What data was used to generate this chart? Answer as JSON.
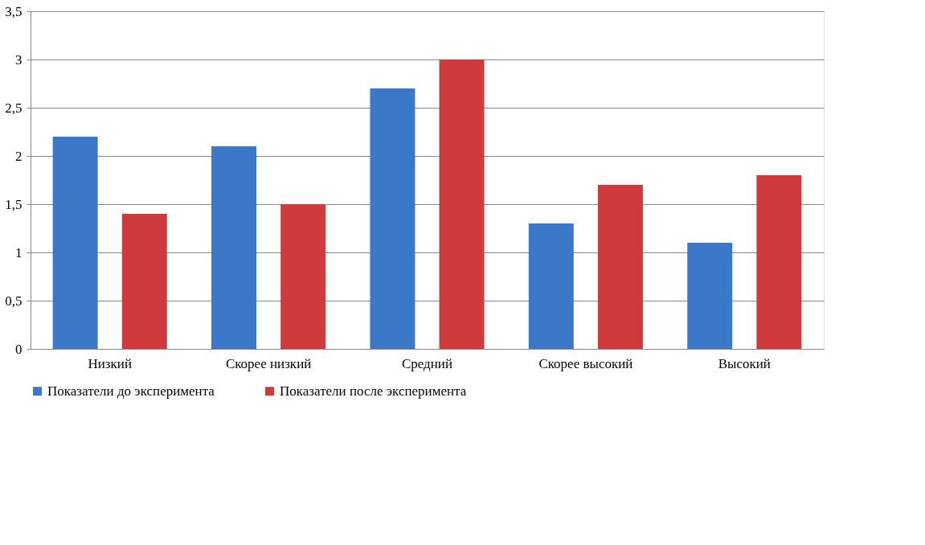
{
  "chart_data": {
    "type": "bar",
    "categories": [
      "Низкий",
      "Скорее низкий",
      "Средний",
      "Скорее высокий",
      "Высокий"
    ],
    "series": [
      {
        "name": "Показатели до эксперимента",
        "color": "#3b78c8",
        "values": [
          2.2,
          2.1,
          2.7,
          1.3,
          1.1
        ]
      },
      {
        "name": "Показатели после эксперимента",
        "color": "#cf3a3c",
        "values": [
          1.4,
          1.5,
          3.0,
          1.7,
          1.8
        ]
      }
    ],
    "ylim": [
      0,
      3.5
    ],
    "yticks": [
      0,
      {
        "value": 0.5,
        "label": "0,5"
      },
      1,
      {
        "value": 1.5,
        "label": "1,5"
      },
      2,
      {
        "value": 2.5,
        "label": "2,5"
      },
      3,
      {
        "value": 3.5,
        "label": "3,5"
      }
    ],
    "grid": "y",
    "legend": "bottom"
  }
}
